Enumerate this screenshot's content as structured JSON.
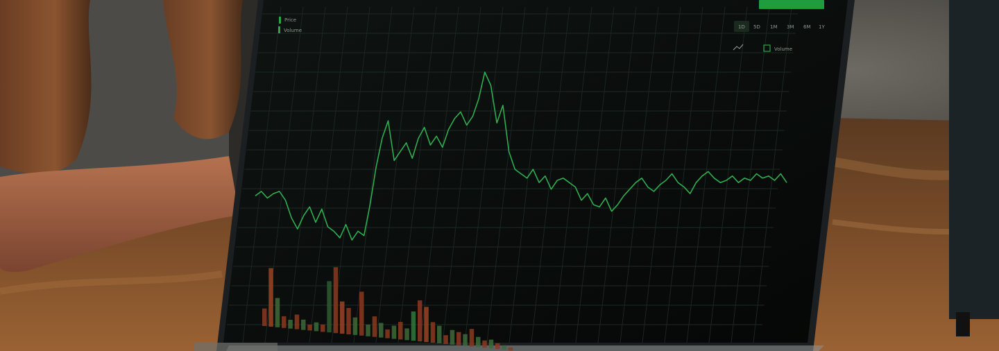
{
  "photo": {
    "subject": "person-viewing-stock-chart-on-laptop"
  },
  "screen": {
    "legend": [
      {
        "label": "Price",
        "color": "#2ea54a"
      },
      {
        "label": "Volume",
        "color": "#2ea54a"
      }
    ],
    "range_tabs": [
      "1D",
      "5D",
      "1M",
      "3M",
      "6M",
      "1Y"
    ],
    "active_tab_index": 0,
    "toolbar_icon": "line-chart-icon",
    "volume_toggle_label": "Volume",
    "action_button_color": "#1f9c3e",
    "y_ticks": [
      "",
      "",
      "",
      "",
      "",
      "",
      "",
      "",
      "",
      "",
      "",
      "",
      "",
      "",
      "",
      ""
    ],
    "x_ticks": [
      "",
      "",
      "",
      "",
      ""
    ]
  },
  "chart_data": {
    "type": "line",
    "title": "",
    "xlabel": "",
    "ylabel": "",
    "series": [
      {
        "values": [
          62,
          64,
          61,
          63,
          64,
          60,
          52,
          47,
          53,
          57,
          50,
          56,
          48,
          46,
          43,
          49,
          42,
          46,
          44,
          58,
          75,
          88,
          96,
          78,
          82,
          86,
          79,
          88,
          93,
          85,
          89,
          84,
          92,
          97,
          100,
          94,
          98,
          106,
          118,
          112,
          95,
          103,
          82,
          74,
          72,
          70,
          74,
          68,
          71,
          65,
          69,
          70,
          68,
          66,
          60,
          63,
          58,
          57,
          61,
          55,
          58,
          62,
          65,
          68,
          70,
          66,
          64,
          67,
          69,
          72,
          68,
          66,
          63,
          68,
          71,
          73,
          70,
          68,
          69,
          71,
          68,
          70,
          69,
          72,
          70,
          71,
          69,
          72,
          68
        ]
      }
    ],
    "volume": {
      "values": [
        12,
        40,
        20,
        8,
        6,
        10,
        7,
        4,
        6,
        5,
        35,
        45,
        22,
        18,
        12,
        30,
        8,
        14,
        10,
        6,
        9,
        12,
        8,
        20,
        28,
        24,
        14,
        12,
        6,
        10,
        9,
        8,
        12,
        7,
        5,
        6,
        4,
        3,
        2
      ],
      "colors": [
        "#8a3a1f",
        "#9a4424",
        "#3d6a3a",
        "#8a3a1f",
        "#3d6a3a",
        "#8a3a1f",
        "#3d6a3a",
        "#8a3a1f",
        "#3d6a3a",
        "#8a3a1f",
        "#2e5b33",
        "#8a3a1f",
        "#9a4424",
        "#8a3a1f",
        "#3d6a3a",
        "#8a3a1f",
        "#3d6a3a",
        "#8a3a1f",
        "#3d6a3a",
        "#8a3a1f",
        "#3d6a3a",
        "#8a3a1f",
        "#3d6a3a",
        "#2e7a3c",
        "#8a3a1f",
        "#9a4424",
        "#8a3a1f",
        "#3d6a3a",
        "#8a3a1f",
        "#3d6a3a",
        "#8a3a1f",
        "#3d6a3a",
        "#8a3a1f",
        "#3d6a3a",
        "#8a3a1f",
        "#3d6a3a",
        "#8a3a1f",
        "#3d6a3a",
        "#8a3a1f"
      ]
    },
    "grid": true
  }
}
